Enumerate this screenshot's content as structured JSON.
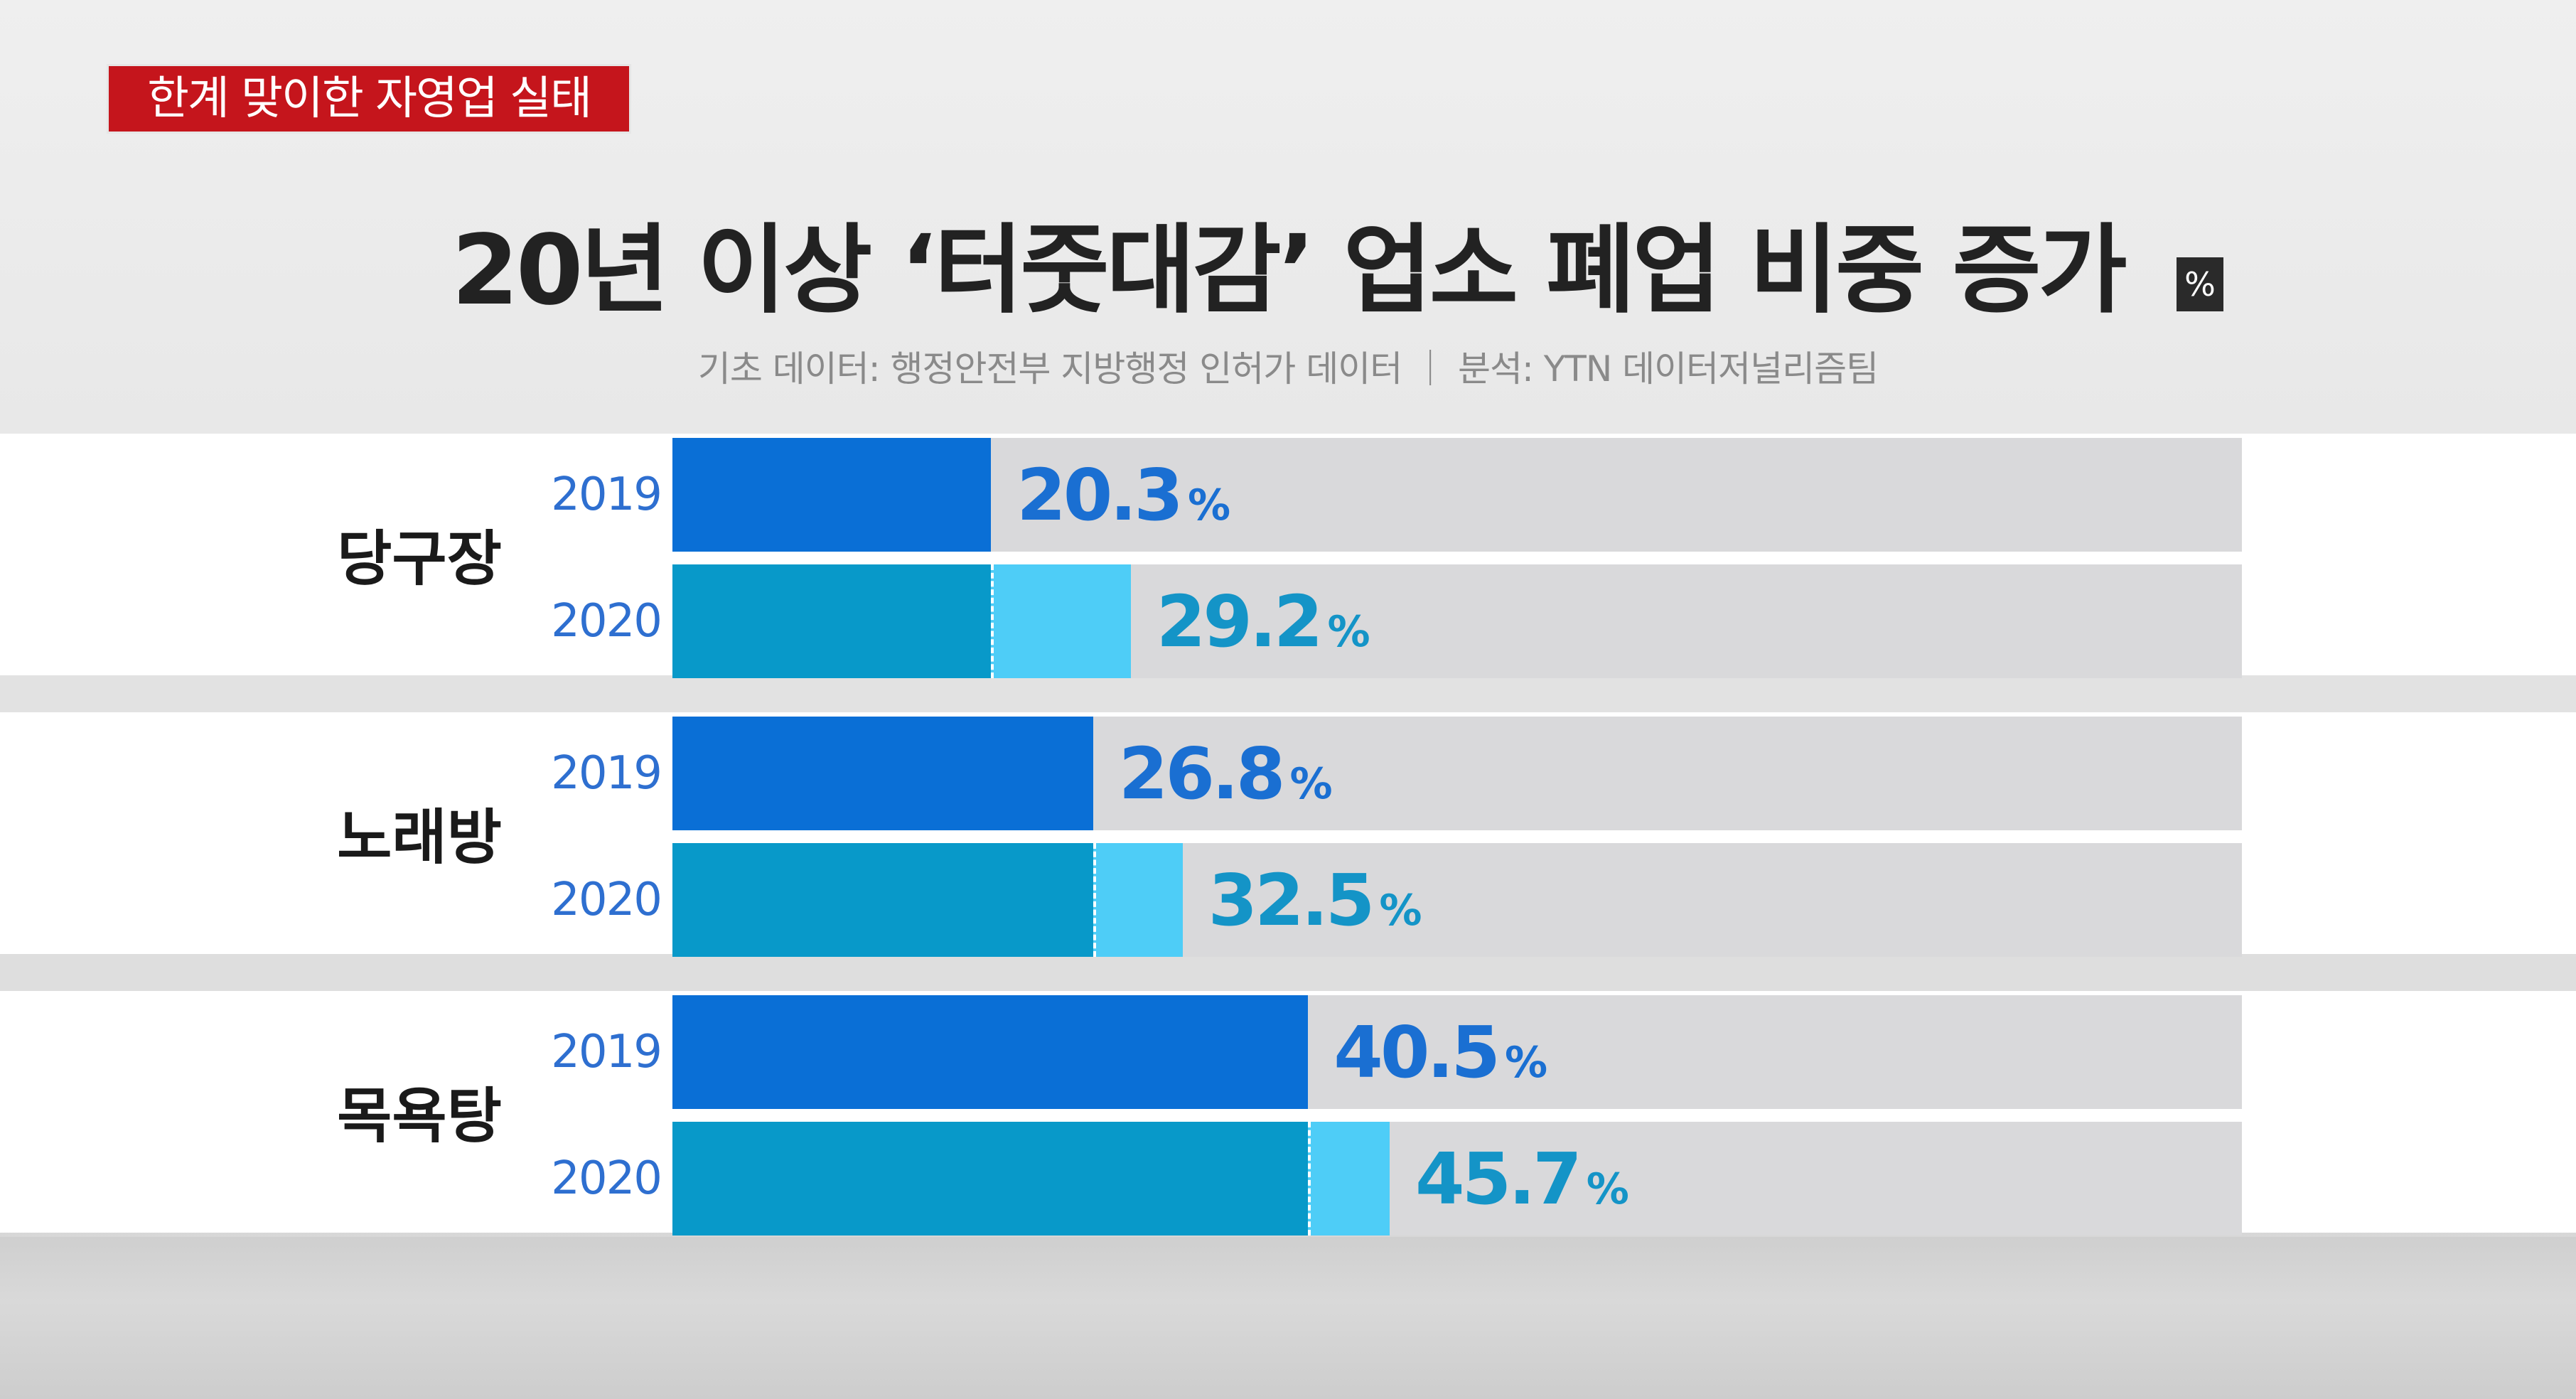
{
  "tag": "한계 맞이한 자영업 실태",
  "title": "20년 이상 ‘터줏대감’ 업소 폐업 비중 증가",
  "unit": "%",
  "source": "기초 데이터: 행정안전부 지방행정 인허가 데이터 ｜ 분석: YTN 데이터저널리즘팀",
  "chart_data": {
    "type": "bar",
    "orientation": "horizontal",
    "title": "20년 이상 ‘터줏대감’ 업소 폐업 비중 증가",
    "unit": "%",
    "categories": [
      "당구장",
      "노래방",
      "목욕탕"
    ],
    "series": [
      {
        "name": "2019",
        "values": [
          20.3,
          26.8,
          40.5
        ]
      },
      {
        "name": "2020",
        "values": [
          29.2,
          32.5,
          45.7
        ]
      }
    ],
    "value_labels": {
      "2019": [
        "20.3",
        "26.8",
        "40.5"
      ],
      "2020": [
        "29.2",
        "32.5",
        "45.7"
      ]
    },
    "xlim": [
      0,
      100
    ],
    "grid": false,
    "legend": "none",
    "colors": {
      "2019_bar": "#0a6fd6",
      "2020_bar": "#0899c9",
      "increase": "#4ecdf7",
      "track": "#d9d9db"
    }
  }
}
